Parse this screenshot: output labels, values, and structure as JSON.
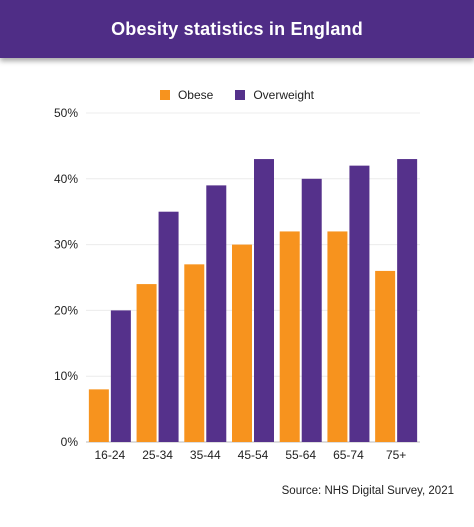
{
  "header": {
    "title": "Obesity statistics in England"
  },
  "legend": {
    "items": [
      {
        "label": "Obese"
      },
      {
        "label": "Overweight"
      }
    ]
  },
  "source": "Source: NHS Digital Survey, 2021",
  "colors": {
    "header": "#4f2d86",
    "obese": "#f7931e",
    "overweight": "#55318b"
  },
  "chart_data": {
    "type": "bar",
    "title": "Obesity statistics in England",
    "xlabel": "",
    "ylabel": "",
    "categories": [
      "16-24",
      "25-34",
      "35-44",
      "45-54",
      "55-64",
      "65-74",
      "75+"
    ],
    "series": [
      {
        "name": "Obese",
        "color": "#f7931e",
        "values": [
          8,
          24,
          27,
          30,
          32,
          32,
          26
        ]
      },
      {
        "name": "Overweight",
        "color": "#55318b",
        "values": [
          20,
          35,
          39,
          43,
          40,
          42,
          43
        ]
      }
    ],
    "ylim": [
      0,
      50
    ],
    "yticks": [
      0,
      10,
      20,
      30,
      40,
      50
    ],
    "ytick_labels": [
      "0%",
      "10%",
      "20%",
      "30%",
      "40%",
      "50%"
    ],
    "grid": true,
    "legend_position": "top-center"
  }
}
